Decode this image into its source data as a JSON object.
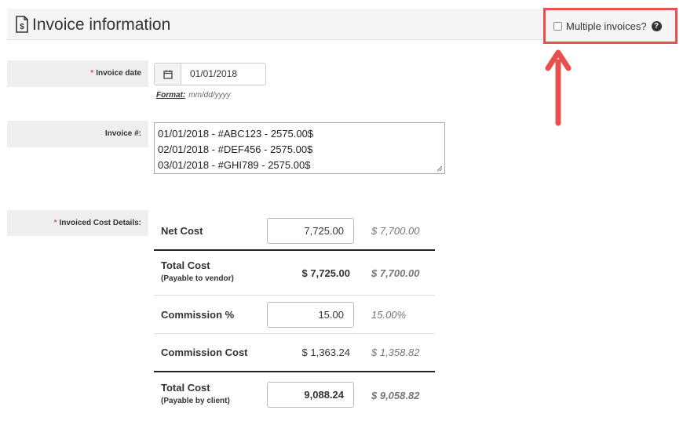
{
  "header": {
    "title": "Invoice information",
    "icon": "invoice-document-icon",
    "multiple_invoices_label": "Multiple invoices?",
    "multiple_invoices_checked": false,
    "help_icon": "question-circle-icon",
    "highlight_color": "#e8504f"
  },
  "invoice_date": {
    "required_mark": "*",
    "label": "Invoice date",
    "value": "01/01/2018",
    "calendar_icon": "calendar-icon",
    "format_label": "Format:",
    "format_value": "mm/dd/yyyy"
  },
  "invoice_number": {
    "label": "Invoice #:",
    "lines": [
      "01/01/2018 - #ABC123 - 2575.00$",
      "02/01/2018 - #DEF456 - 2575.00$",
      "03/01/2018 - #GHI789 - 2575.00$"
    ]
  },
  "cost_details": {
    "required_mark": "*",
    "label": "Invoiced Cost Details:",
    "rows": [
      {
        "label": "Net Cost",
        "sub": "",
        "input": "7,725.00",
        "value": "",
        "previous": "$ 7,700.00"
      },
      {
        "label": "Total Cost",
        "sub": "(Payable to vendor)",
        "input": "",
        "value": "$ 7,725.00",
        "previous": "$ 7,700.00"
      },
      {
        "label": "Commission %",
        "sub": "",
        "input": "15.00",
        "value": "",
        "previous": "15.00%"
      },
      {
        "label": "Commission Cost",
        "sub": "",
        "input": "",
        "value": "$ 1,363.24",
        "previous": "$ 1,358.82"
      },
      {
        "label": "Total Cost",
        "sub": "(Payable by client)",
        "input": "9,088.24",
        "value": "",
        "previous": "$ 9,058.82"
      }
    ]
  }
}
